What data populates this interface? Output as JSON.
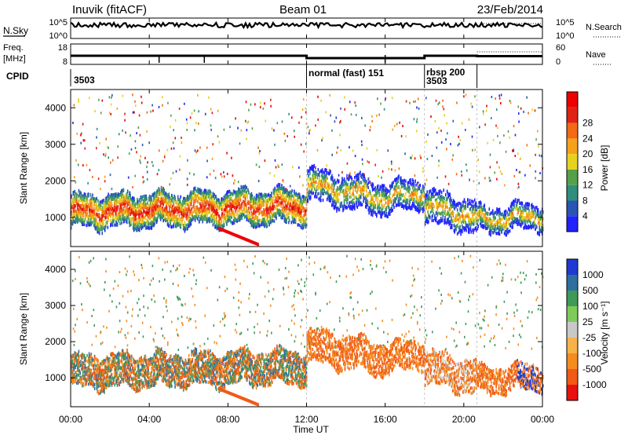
{
  "header": {
    "station": "Inuvik (fitACF)",
    "beam": "Beam 01",
    "date": "23/Feb/2014"
  },
  "strips": {
    "nsky": {
      "label": "N.Sky",
      "ticks": [
        "10^5",
        "10^0"
      ]
    },
    "nsearch": {
      "label": "N.Search",
      "ticks": [
        "10^5",
        "10^0"
      ]
    },
    "freq": {
      "label_top": "Freq.",
      "label_unit": "[MHz]",
      "ticks": [
        "18",
        "8"
      ]
    },
    "nave": {
      "label": "Nave",
      "ticks": [
        "60",
        "0"
      ]
    },
    "cpid": {
      "label": "CPID",
      "segments": [
        {
          "text": "3503",
          "start": 0
        },
        {
          "text": "normal (fast)  151",
          "start": 12
        },
        {
          "text": "rbsp  200",
          "start": 18
        },
        {
          "text": "3503",
          "start": 18
        }
      ],
      "dividers": [
        12,
        18,
        20.67
      ]
    }
  },
  "chart_data": [
    {
      "type": "heatmap",
      "parameter": "power",
      "ylabel": "Slant Range [km]",
      "ylim": [
        200,
        4500
      ],
      "yticks": [
        1000,
        2000,
        3000,
        4000
      ],
      "colorbar": {
        "label": "Power [dB]",
        "min": 0,
        "max": 32,
        "ticks": [
          "4",
          "8",
          "12",
          "16",
          "20",
          "24",
          "28"
        ],
        "colors": [
          "#2222ff",
          "#2a55b5",
          "#2f8f7c",
          "#57a04a",
          "#e6d21e",
          "#f4a21a",
          "#f26a14",
          "#e02216",
          "#ee0000"
        ]
      }
    },
    {
      "type": "heatmap",
      "parameter": "velocity",
      "ylabel": "Slant Range [km]",
      "ylim": [
        200,
        4500
      ],
      "yticks": [
        1000,
        2000,
        3000,
        4000
      ],
      "colorbar": {
        "label": "Velocity [m s⁻¹]",
        "ticks": [
          "-1000",
          "-500",
          "-100",
          "-25",
          "25",
          "100",
          "500",
          "1000"
        ],
        "colors": [
          "#e81010",
          "#f05a16",
          "#f58c20",
          "#f7b248",
          "#c8c8c8",
          "#7ecb5a",
          "#3f9a58",
          "#2e6fa0",
          "#1f3ad0"
        ]
      }
    }
  ],
  "xaxis": {
    "label": "Time UT",
    "range_hours": [
      0,
      24
    ],
    "ticks": [
      "00:00",
      "04:00",
      "08:00",
      "12:00",
      "16:00",
      "20:00",
      "00:00"
    ]
  }
}
